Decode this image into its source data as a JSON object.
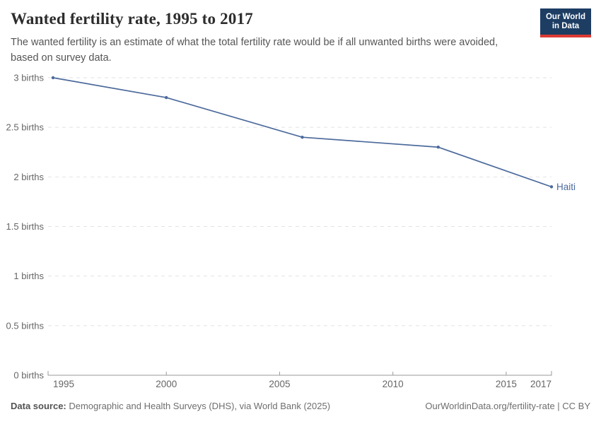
{
  "header": {
    "title": "Wanted fertility rate, 1995 to 2017",
    "subtitle": "The wanted fertility is an estimate of what the total fertility rate would be if all unwanted births were avoided, based on survey data.",
    "logo": {
      "line1": "Our World",
      "line2": "in Data"
    }
  },
  "chart_data": {
    "type": "line",
    "title": "Wanted fertility rate, 1995 to 2017",
    "x": [
      1995,
      2000,
      2006,
      2012,
      2017
    ],
    "series": [
      {
        "name": "Haiti",
        "color": "#4c6a9c",
        "values": [
          3.0,
          2.8,
          2.4,
          2.3,
          1.9
        ]
      }
    ],
    "xlim": [
      1995,
      2017
    ],
    "ylim": [
      0,
      3
    ],
    "x_ticks": [
      {
        "value": 1995,
        "label": "1995"
      },
      {
        "value": 2000,
        "label": "2000"
      },
      {
        "value": 2005,
        "label": "2005"
      },
      {
        "value": 2010,
        "label": "2010"
      },
      {
        "value": 2015,
        "label": "2015"
      },
      {
        "value": 2017,
        "label": "2017"
      }
    ],
    "y_ticks": [
      {
        "value": 0,
        "label": "0 births"
      },
      {
        "value": 0.5,
        "label": "0.5 births"
      },
      {
        "value": 1,
        "label": "1 births"
      },
      {
        "value": 1.5,
        "label": "1.5 births"
      },
      {
        "value": 2,
        "label": "2 births"
      },
      {
        "value": 2.5,
        "label": "2.5 births"
      },
      {
        "value": 3,
        "label": "3 births"
      }
    ],
    "grid": "horizontal-dashed",
    "legend_position": "end-of-line-label"
  },
  "footer": {
    "source_label": "Data source:",
    "source_text": " Demographic and Health Surveys (DHS), via World Bank (2025)",
    "credit": "OurWorldinData.org/fertility-rate | CC BY"
  },
  "colors": {
    "series_line": "#4c6a9c",
    "gridline": "#e2e2e2",
    "axis": "#9a9a9a",
    "tick_text": "#666666",
    "logo_background": "#1d3d63",
    "logo_stripe": "#dc3a34",
    "title_text": "#2d2d2d",
    "subtitle_text": "#555555"
  }
}
